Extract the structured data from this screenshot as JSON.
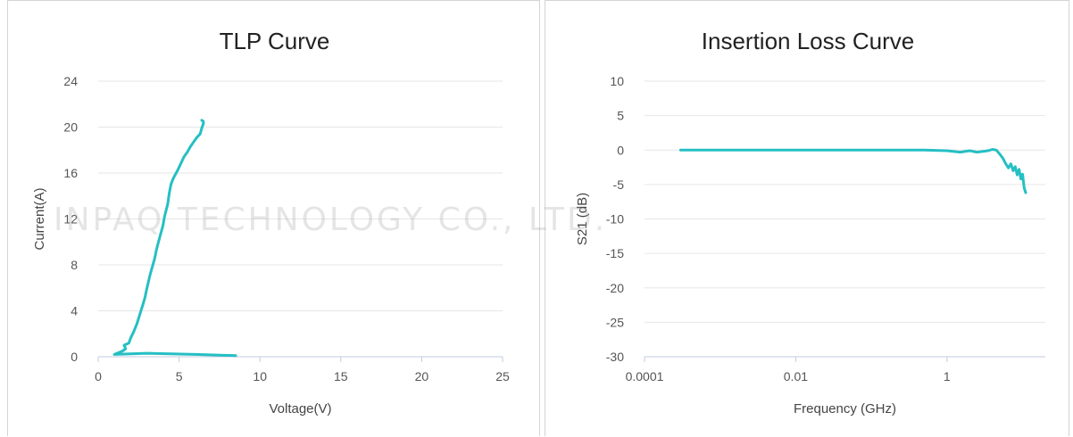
{
  "watermark": "INPAQ TECHNOLOGY CO., LTD.",
  "colors": {
    "series": "#25bfc3",
    "grid": "#e6e6e6"
  },
  "chart_data": [
    {
      "type": "line",
      "title": "TLP Curve",
      "xlabel": "Voltage(V)",
      "ylabel": "Current(A)",
      "xlim": [
        0,
        25
      ],
      "ylim": [
        0,
        24
      ],
      "xticks": [
        0,
        5,
        10,
        15,
        20,
        25
      ],
      "yticks": [
        0,
        4,
        8,
        12,
        16,
        20,
        24
      ],
      "grid": "horizontal",
      "series": [
        {
          "x": [
            8.5,
            6.0,
            3.0,
            1.0,
            1.5,
            1.7,
            1.6,
            1.9,
            2.0,
            2.2,
            2.4,
            2.6,
            2.8,
            2.9,
            3.0,
            3.1,
            3.2,
            3.3,
            3.5,
            3.6,
            3.8,
            4.0,
            4.1,
            4.3,
            4.4,
            4.5,
            4.6,
            4.7,
            4.9,
            5.1,
            5.3,
            5.5,
            5.7,
            5.9,
            6.1,
            6.3,
            6.4,
            6.5,
            6.5,
            6.4
          ],
          "y": [
            0.1,
            0.2,
            0.3,
            0.2,
            0.5,
            0.7,
            1.0,
            1.2,
            1.6,
            2.2,
            2.9,
            3.8,
            4.7,
            5.2,
            5.9,
            6.5,
            7.1,
            7.6,
            8.6,
            9.3,
            10.4,
            11.4,
            12.2,
            13.3,
            14.3,
            15.0,
            15.4,
            15.7,
            16.2,
            16.8,
            17.4,
            17.8,
            18.3,
            18.7,
            19.1,
            19.4,
            19.9,
            20.3,
            20.5,
            20.6
          ]
        }
      ]
    },
    {
      "type": "line",
      "title": "Insertion Loss Curve",
      "xlabel": "Frequency (GHz)",
      "ylabel": "S21 (dB)",
      "xscale": "log",
      "xlim": [
        0.0001,
        20
      ],
      "ylim": [
        -30,
        10
      ],
      "xticks": [
        0.0001,
        0.01,
        1
      ],
      "xtick_labels": [
        "0.0001",
        "0.01",
        "1"
      ],
      "yticks": [
        -30,
        -25,
        -20,
        -15,
        -10,
        -5,
        0,
        5,
        10
      ],
      "grid": "horizontal",
      "series": [
        {
          "x": [
            0.0003,
            0.001,
            0.01,
            0.1,
            0.5,
            1,
            1.5,
            2,
            2.5,
            3,
            3.5,
            4,
            4.5,
            5,
            5.5,
            6,
            6.5,
            7,
            7.5,
            8,
            8.5,
            9,
            9.5,
            10,
            10.5,
            11
          ],
          "y": [
            0.0,
            0.0,
            0.0,
            0.0,
            0.0,
            -0.1,
            -0.3,
            -0.1,
            -0.3,
            -0.2,
            -0.1,
            0.1,
            0.0,
            -0.6,
            -1.2,
            -2.0,
            -2.6,
            -2.0,
            -3.0,
            -2.4,
            -3.6,
            -2.8,
            -4.2,
            -3.5,
            -5.5,
            -6.2
          ]
        }
      ]
    }
  ]
}
